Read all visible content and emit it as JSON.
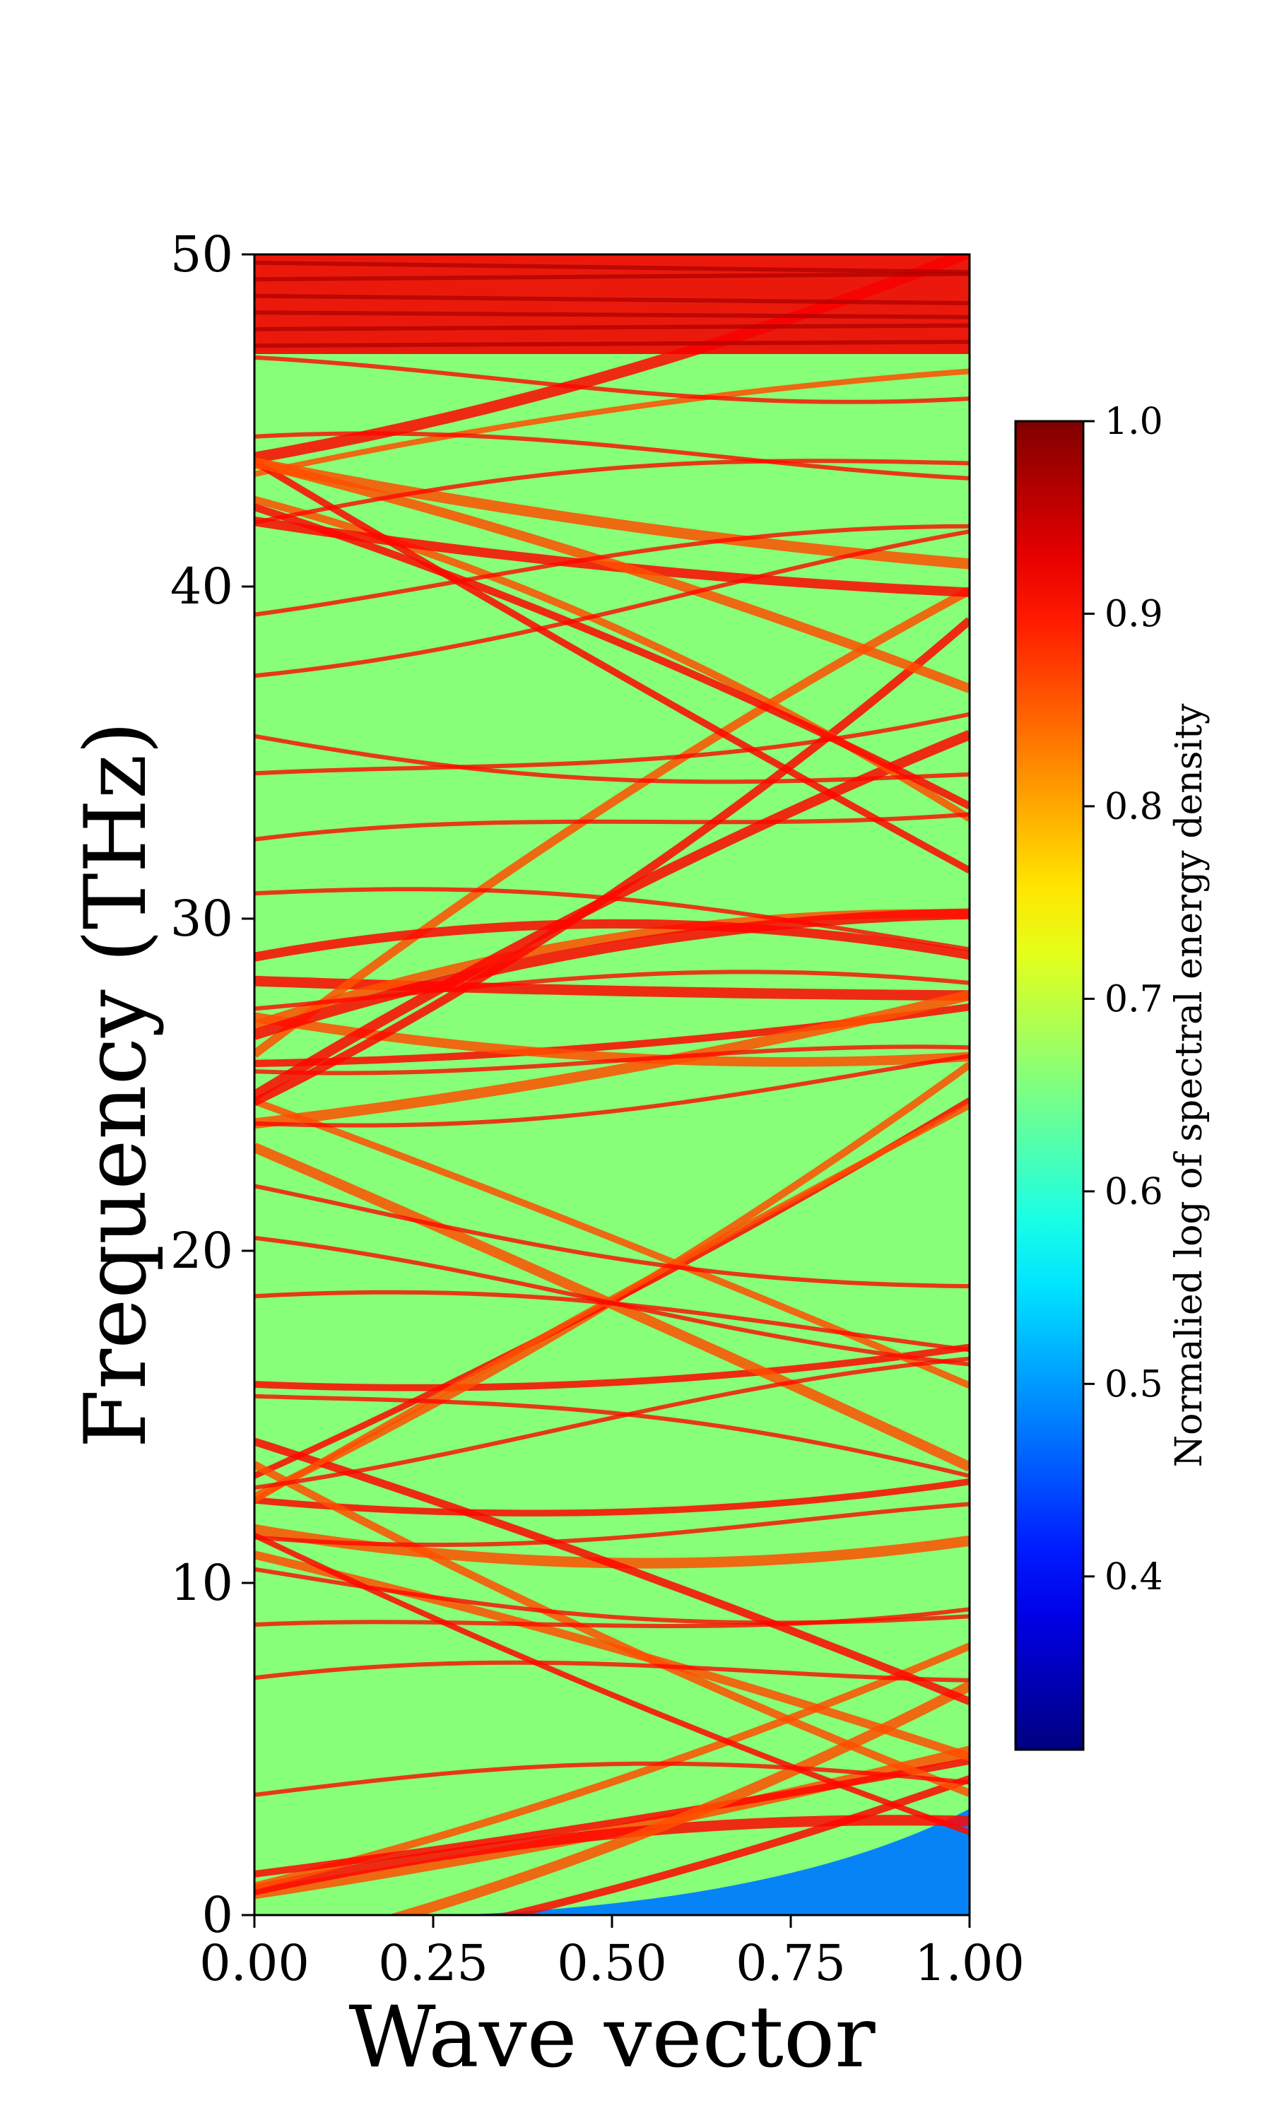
{
  "chart_data": {
    "type": "heatmap",
    "title": "",
    "xlabel": "Wave vector",
    "ylabel": "Frequency (THz)",
    "xlim": [
      0.0,
      1.0
    ],
    "ylim": [
      0,
      50
    ],
    "x_ticks": [
      "0.00",
      "0.25",
      "0.50",
      "0.75",
      "1.00"
    ],
    "x_tick_values": [
      0.0,
      0.25,
      0.5,
      0.75,
      1.0
    ],
    "y_ticks": [
      "0",
      "10",
      "20",
      "30",
      "40",
      "50"
    ],
    "y_tick_values": [
      0,
      10,
      20,
      30,
      40,
      50
    ],
    "colormap": "jet",
    "colorbar": {
      "label": "Normalied log of spectral energy density",
      "range": [
        0.31,
        1.0
      ],
      "ticks": [
        "0.4",
        "0.5",
        "0.6",
        "0.7",
        "0.8",
        "0.9",
        "1.0"
      ],
      "tick_values": [
        0.4,
        0.5,
        0.6,
        0.7,
        0.8,
        0.9,
        1.0
      ]
    },
    "background_level": 0.66,
    "high_density_band": {
      "freq_min": 47,
      "freq_max": 50,
      "level": 0.92
    },
    "low_density_region": {
      "level": 0.48,
      "freq_max_at_k1": 3.2
    },
    "branch_families": [
      {
        "name": "",
        "center_freq": 0,
        "spread": 6,
        "count": 6,
        "slope_range": [
          2,
          6
        ]
      },
      {
        "name": "",
        "center_freq": 13,
        "spread": 9,
        "count": 10,
        "slope_range": [
          -14,
          14
        ]
      },
      {
        "name": "",
        "center_freq": 26,
        "spread": 10,
        "count": 12,
        "slope_range": [
          -18,
          18
        ]
      },
      {
        "name": "",
        "center_freq": 43,
        "spread": 6,
        "count": 8,
        "slope_range": [
          -16,
          8
        ]
      }
    ]
  }
}
